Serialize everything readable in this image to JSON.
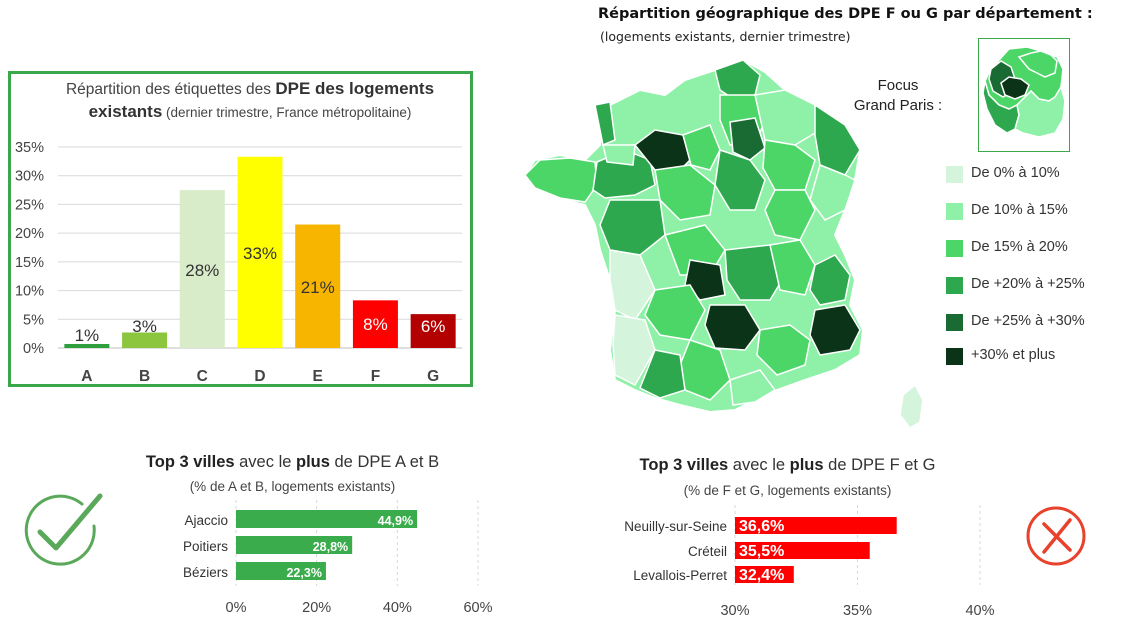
{
  "chart_data": [
    {
      "type": "bar",
      "title_parts": {
        "pre": "Répartition des étiquettes des ",
        "bold": "DPE des logements existants",
        "post": " (dernier trimestre, France métropolitaine)"
      },
      "categories": [
        "A",
        "B",
        "C",
        "D",
        "E",
        "F",
        "G"
      ],
      "values": [
        1,
        3,
        28,
        33,
        21,
        8,
        6
      ],
      "heights": [
        0.7,
        2.7,
        27.5,
        33.3,
        21.5,
        8.3,
        5.9
      ],
      "data_labels": [
        "1%",
        "3%",
        "28%",
        "33%",
        "21%",
        "8%",
        "6%"
      ],
      "colors": [
        "#2e9e3f",
        "#8cc63f",
        "#d9ecc9",
        "#ffff00",
        "#f7b500",
        "#ff0000",
        "#b30000"
      ],
      "label_colors": [
        "#333333",
        "#333333",
        "#333333",
        "#333333",
        "#333333",
        "#ffffff",
        "#ffffff"
      ],
      "y_ticks": [
        "0%",
        "5%",
        "10%",
        "15%",
        "20%",
        "25%",
        "30%",
        "35%"
      ],
      "ylim": [
        0,
        35
      ],
      "grid": true
    },
    {
      "type": "bar",
      "orientation": "horizontal",
      "title_parts": {
        "bold1": "Top 3 villes",
        "mid": " avec le ",
        "bold2": "plus",
        "post": " de DPE A et B"
      },
      "subtitle": "(% de A et B, logements existants)",
      "categories": [
        "Ajaccio",
        "Poitiers",
        "Béziers"
      ],
      "values": [
        44.9,
        28.8,
        22.3
      ],
      "data_labels": [
        "44,9%",
        "28,8%",
        "22,3%"
      ],
      "x_ticks": [
        "0%",
        "20%",
        "40%",
        "60%"
      ],
      "xlim": [
        0,
        60
      ],
      "color": "#3aac4c"
    },
    {
      "type": "bar",
      "orientation": "horizontal",
      "title_parts": {
        "bold1": "Top 3 villes",
        "mid": " avec le ",
        "bold2": "plus",
        "post": " de DPE F et G"
      },
      "subtitle": "(% de F et G, logements existants)",
      "categories": [
        "Neuilly-sur-Seine",
        "Créteil",
        "Levallois-Perret"
      ],
      "values": [
        36.6,
        35.5,
        32.4
      ],
      "data_labels": [
        "36,6%",
        "35,5%",
        "32,4%"
      ],
      "x_ticks": [
        "30%",
        "35%",
        "40%"
      ],
      "xlim": [
        30,
        40
      ],
      "color": "#ff0000"
    }
  ],
  "map": {
    "title": "Répartition géographique des DPE F ou G par département :",
    "subtitle": "(logements existants, dernier trimestre)",
    "focus_line1": "Focus",
    "focus_line2": "Grand Paris :",
    "legend": [
      {
        "label": "De 0% à 10%",
        "color": "#d4f5dc"
      },
      {
        "label": "De 10% à 15%",
        "color": "#8ff0a8"
      },
      {
        "label": "De 15% à 20%",
        "color": "#4cd668"
      },
      {
        "label": "De +20% à +25%",
        "color": "#2ea84e"
      },
      {
        "label": "De +25% à +30%",
        "color": "#1a6b33"
      },
      {
        "label": "+30% et plus",
        "color": "#0b3317"
      }
    ]
  },
  "icons": {
    "check": "check-circle-icon",
    "cross": "x-circle-icon"
  }
}
